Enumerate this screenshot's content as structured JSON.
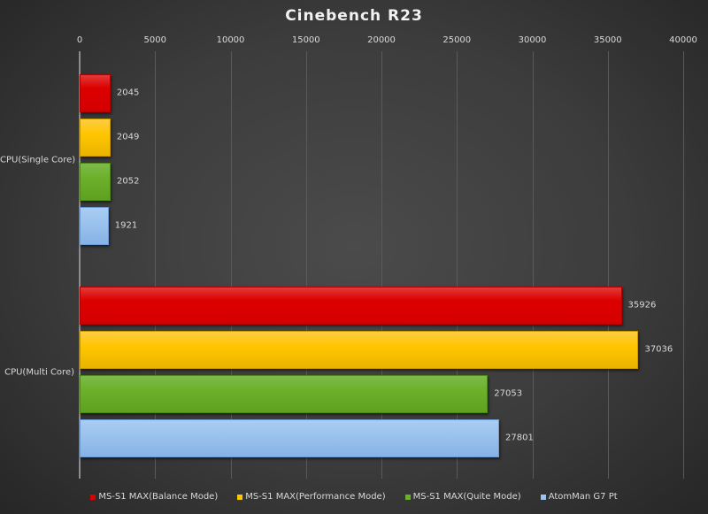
{
  "chart_data": {
    "type": "bar",
    "orientation": "horizontal",
    "title": "Cinebench  R23",
    "xlabel": "",
    "ylabel": "",
    "xlim": [
      0,
      40000
    ],
    "x_ticks": [
      0,
      5000,
      10000,
      15000,
      20000,
      25000,
      30000,
      35000,
      40000
    ],
    "x_tick_labels": [
      "0",
      "5000",
      "10000",
      "15000",
      "20000",
      "25000",
      "30000",
      "35000",
      "40000"
    ],
    "x_axis_position": "top",
    "grid": true,
    "legend_position": "bottom",
    "categories": [
      "CPU(Single Core)",
      "CPU(Multi Core)"
    ],
    "series": [
      {
        "name": "MS-S1 MAX(Balance Mode)",
        "color": "#dc0000",
        "values": [
          2045,
          35926
        ]
      },
      {
        "name": "MS-S1 MAX(Performance Mode)",
        "color": "#ffc600",
        "values": [
          2049,
          37036
        ]
      },
      {
        "name": "MS-S1 MAX(Quite Mode)",
        "color": "#6cb02a",
        "values": [
          2052,
          27053
        ]
      },
      {
        "name": "AtomMan G7 Pt",
        "color": "#9cc3ee",
        "values": [
          1921,
          27801
        ]
      }
    ],
    "data_labels": true
  },
  "labels": {
    "title": "Cinebench  R23",
    "ticks": [
      "0",
      "5000",
      "10000",
      "15000",
      "20000",
      "25000",
      "30000",
      "35000",
      "40000"
    ],
    "categories": [
      "CPU(Single Core)",
      "CPU(Multi Core)"
    ],
    "values": {
      "single": [
        "2045",
        "2049",
        "2052",
        "1921"
      ],
      "multi": [
        "35926",
        "37036",
        "27053",
        "27801"
      ]
    },
    "legend": [
      "MS-S1 MAX(Balance Mode)",
      "MS-S1 MAX(Performance Mode)",
      "MS-S1 MAX(Quite Mode)",
      "AtomMan G7 Pt"
    ]
  }
}
